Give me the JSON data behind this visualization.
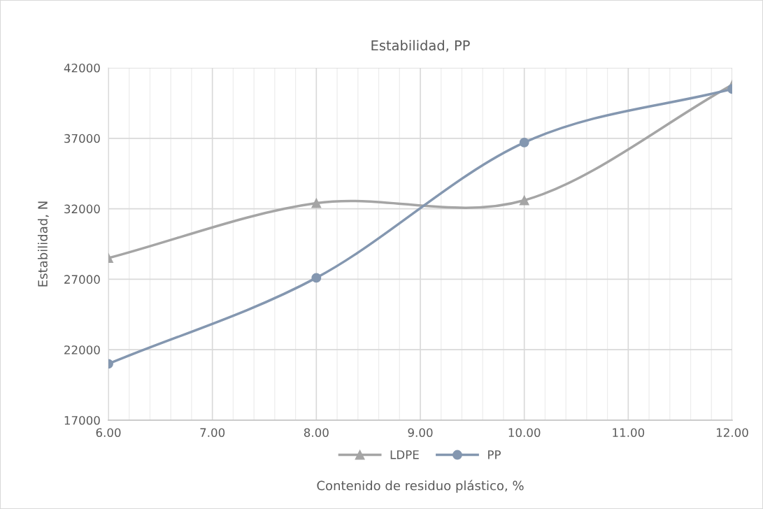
{
  "chart_data": {
    "type": "line",
    "title": "Estabilidad, PP",
    "xlabel": "Contenido de residuo plástico, %",
    "ylabel": "Estabilidad, N",
    "x": [
      6,
      8,
      10,
      12
    ],
    "series": [
      {
        "name": "LDPE",
        "color": "#a5a5a5",
        "marker": "triangle",
        "values": [
          28500,
          32400,
          32600,
          40800
        ]
      },
      {
        "name": "PP",
        "color": "#8497b0",
        "marker": "circle",
        "values": [
          21000,
          27100,
          36700,
          40500
        ]
      }
    ],
    "xlim": [
      6,
      12
    ],
    "xticks": [
      {
        "value": 6,
        "label": "6.00"
      },
      {
        "value": 6.2,
        "label": null
      },
      {
        "value": 6.4,
        "label": null
      },
      {
        "value": 6.6,
        "label": null
      },
      {
        "value": 6.8,
        "label": null
      },
      {
        "value": 7,
        "label": "7.00"
      },
      {
        "value": 7.2,
        "label": null
      },
      {
        "value": 7.4,
        "label": null
      },
      {
        "value": 7.6,
        "label": null
      },
      {
        "value": 7.8,
        "label": null
      },
      {
        "value": 8,
        "label": "8.00"
      },
      {
        "value": 8.2,
        "label": null
      },
      {
        "value": 8.4,
        "label": null
      },
      {
        "value": 8.6,
        "label": null
      },
      {
        "value": 8.8,
        "label": null
      },
      {
        "value": 9,
        "label": "9.00"
      },
      {
        "value": 9.2,
        "label": null
      },
      {
        "value": 9.4,
        "label": null
      },
      {
        "value": 9.6,
        "label": null
      },
      {
        "value": 9.8,
        "label": null
      },
      {
        "value": 10,
        "label": "10.00"
      },
      {
        "value": 10.2,
        "label": null
      },
      {
        "value": 10.4,
        "label": null
      },
      {
        "value": 10.6,
        "label": null
      },
      {
        "value": 10.8,
        "label": null
      },
      {
        "value": 11,
        "label": "11.00"
      },
      {
        "value": 11.2,
        "label": null
      },
      {
        "value": 11.4,
        "label": null
      },
      {
        "value": 11.6,
        "label": null
      },
      {
        "value": 11.8,
        "label": null
      },
      {
        "value": 12,
        "label": "12.00"
      }
    ],
    "ylim": [
      17000,
      42000
    ],
    "yticks": [
      17000,
      22000,
      27000,
      32000,
      37000,
      42000
    ],
    "grid": true,
    "legend": "bottom",
    "line_style": "solid"
  }
}
